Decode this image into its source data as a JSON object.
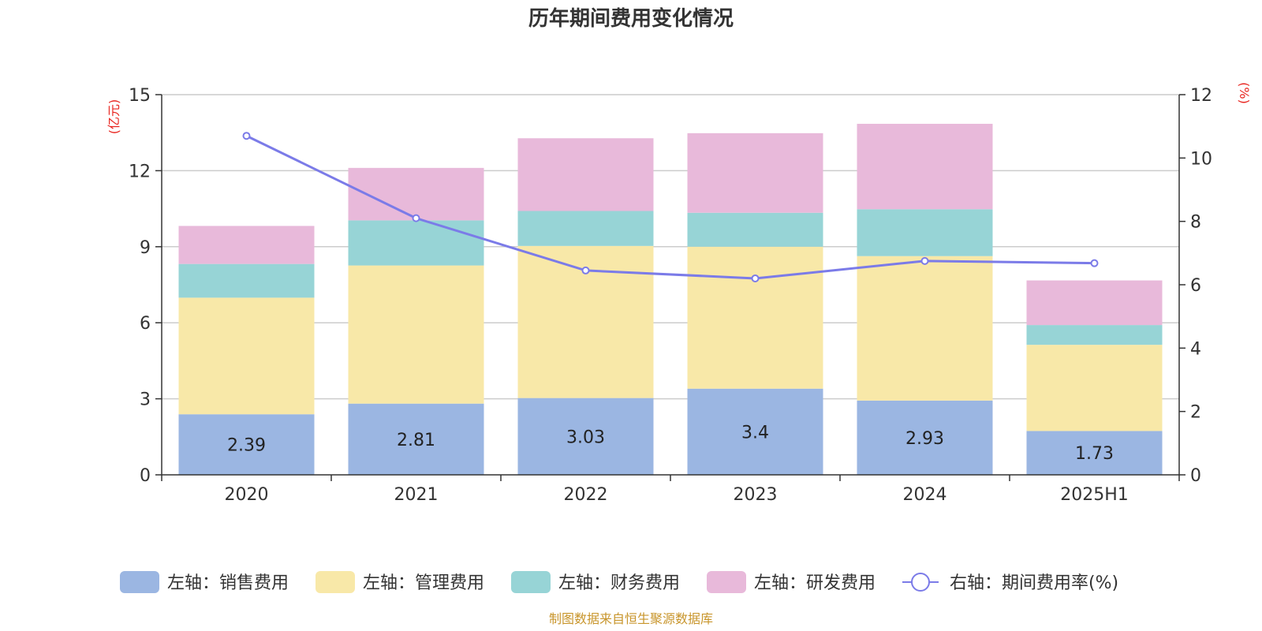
{
  "chart_data": {
    "type": "bar",
    "title": "历年期间费用变化情况",
    "categories": [
      "2020",
      "2021",
      "2022",
      "2023",
      "2024",
      "2025H1"
    ],
    "left_axis": {
      "unit": "(亿元)",
      "ylim": [
        0,
        15
      ],
      "ticks": [
        "0",
        "3",
        "6",
        "9",
        "12",
        "15"
      ]
    },
    "right_axis": {
      "unit": "(%)",
      "ylim": [
        0,
        12
      ],
      "ticks": [
        "0",
        "2",
        "4",
        "6",
        "8",
        "10",
        "12"
      ]
    },
    "series": [
      {
        "name": "左轴：销售费用",
        "axis": "left",
        "kind": "stacked-bar",
        "color": "#9bb6e2",
        "values": [
          2.39,
          2.81,
          3.03,
          3.4,
          2.93,
          1.73
        ],
        "labels": [
          "2.39",
          "2.81",
          "3.03",
          "3.4",
          "2.93",
          "1.73"
        ]
      },
      {
        "name": "左轴：管理费用",
        "axis": "left",
        "kind": "stacked-bar",
        "color": "#f8e8a8",
        "values": [
          4.6,
          5.45,
          6.0,
          5.6,
          5.7,
          3.4
        ]
      },
      {
        "name": "左轴：财务费用",
        "axis": "left",
        "kind": "stacked-bar",
        "color": "#97d4d6",
        "values": [
          1.33,
          1.78,
          1.38,
          1.34,
          1.85,
          0.78
        ]
      },
      {
        "name": "左轴：研发费用",
        "axis": "left",
        "kind": "stacked-bar",
        "color": "#e8b9da",
        "values": [
          1.5,
          2.07,
          2.87,
          3.14,
          3.37,
          1.76
        ]
      },
      {
        "name": "右轴：期间费用率(%)",
        "axis": "right",
        "kind": "line",
        "color": "#7b7be8",
        "values": [
          10.7,
          8.1,
          6.45,
          6.2,
          6.75,
          6.68
        ]
      }
    ],
    "grid": true,
    "legend_position": "bottom"
  },
  "source": "制图数据来自恒生聚源数据库"
}
